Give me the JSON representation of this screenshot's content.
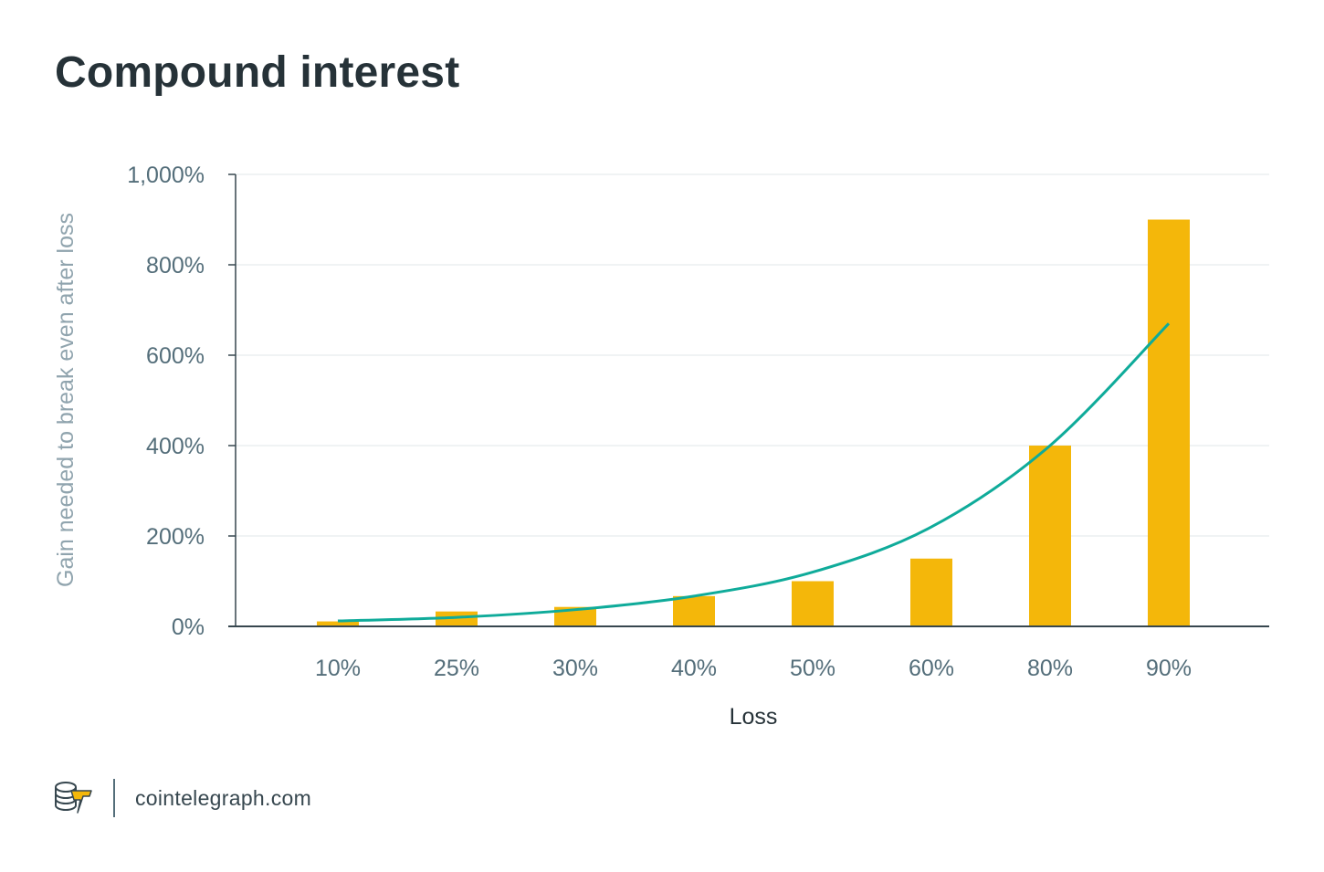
{
  "title": "Compound interest",
  "footer": {
    "site": "cointelegraph.com",
    "logo_icon": "cointelegraph-logo-icon"
  },
  "colors": {
    "bar": "#f4b70a",
    "line": "#0fab9a",
    "axis": "#37474f",
    "grid": "#eceff1"
  },
  "chart_data": {
    "type": "bar",
    "categories": [
      "10%",
      "25%",
      "30%",
      "40%",
      "50%",
      "60%",
      "80%",
      "90%"
    ],
    "series": [
      {
        "type": "bar",
        "values": [
          11,
          33,
          43,
          67,
          100,
          150,
          400,
          900
        ]
      },
      {
        "type": "line",
        "values": [
          12,
          20,
          37,
          67,
          120,
          220,
          400,
          670
        ]
      }
    ],
    "xlabel": "Loss",
    "ylabel": "Gain needed to break even after loss",
    "ylim": [
      0,
      1000
    ],
    "yticks": [
      0,
      200,
      400,
      600,
      800,
      1000
    ],
    "ytick_labels": [
      "0%",
      "200%",
      "400%",
      "600%",
      "800%",
      "1,000%"
    ],
    "grid": true,
    "legend": "none"
  }
}
